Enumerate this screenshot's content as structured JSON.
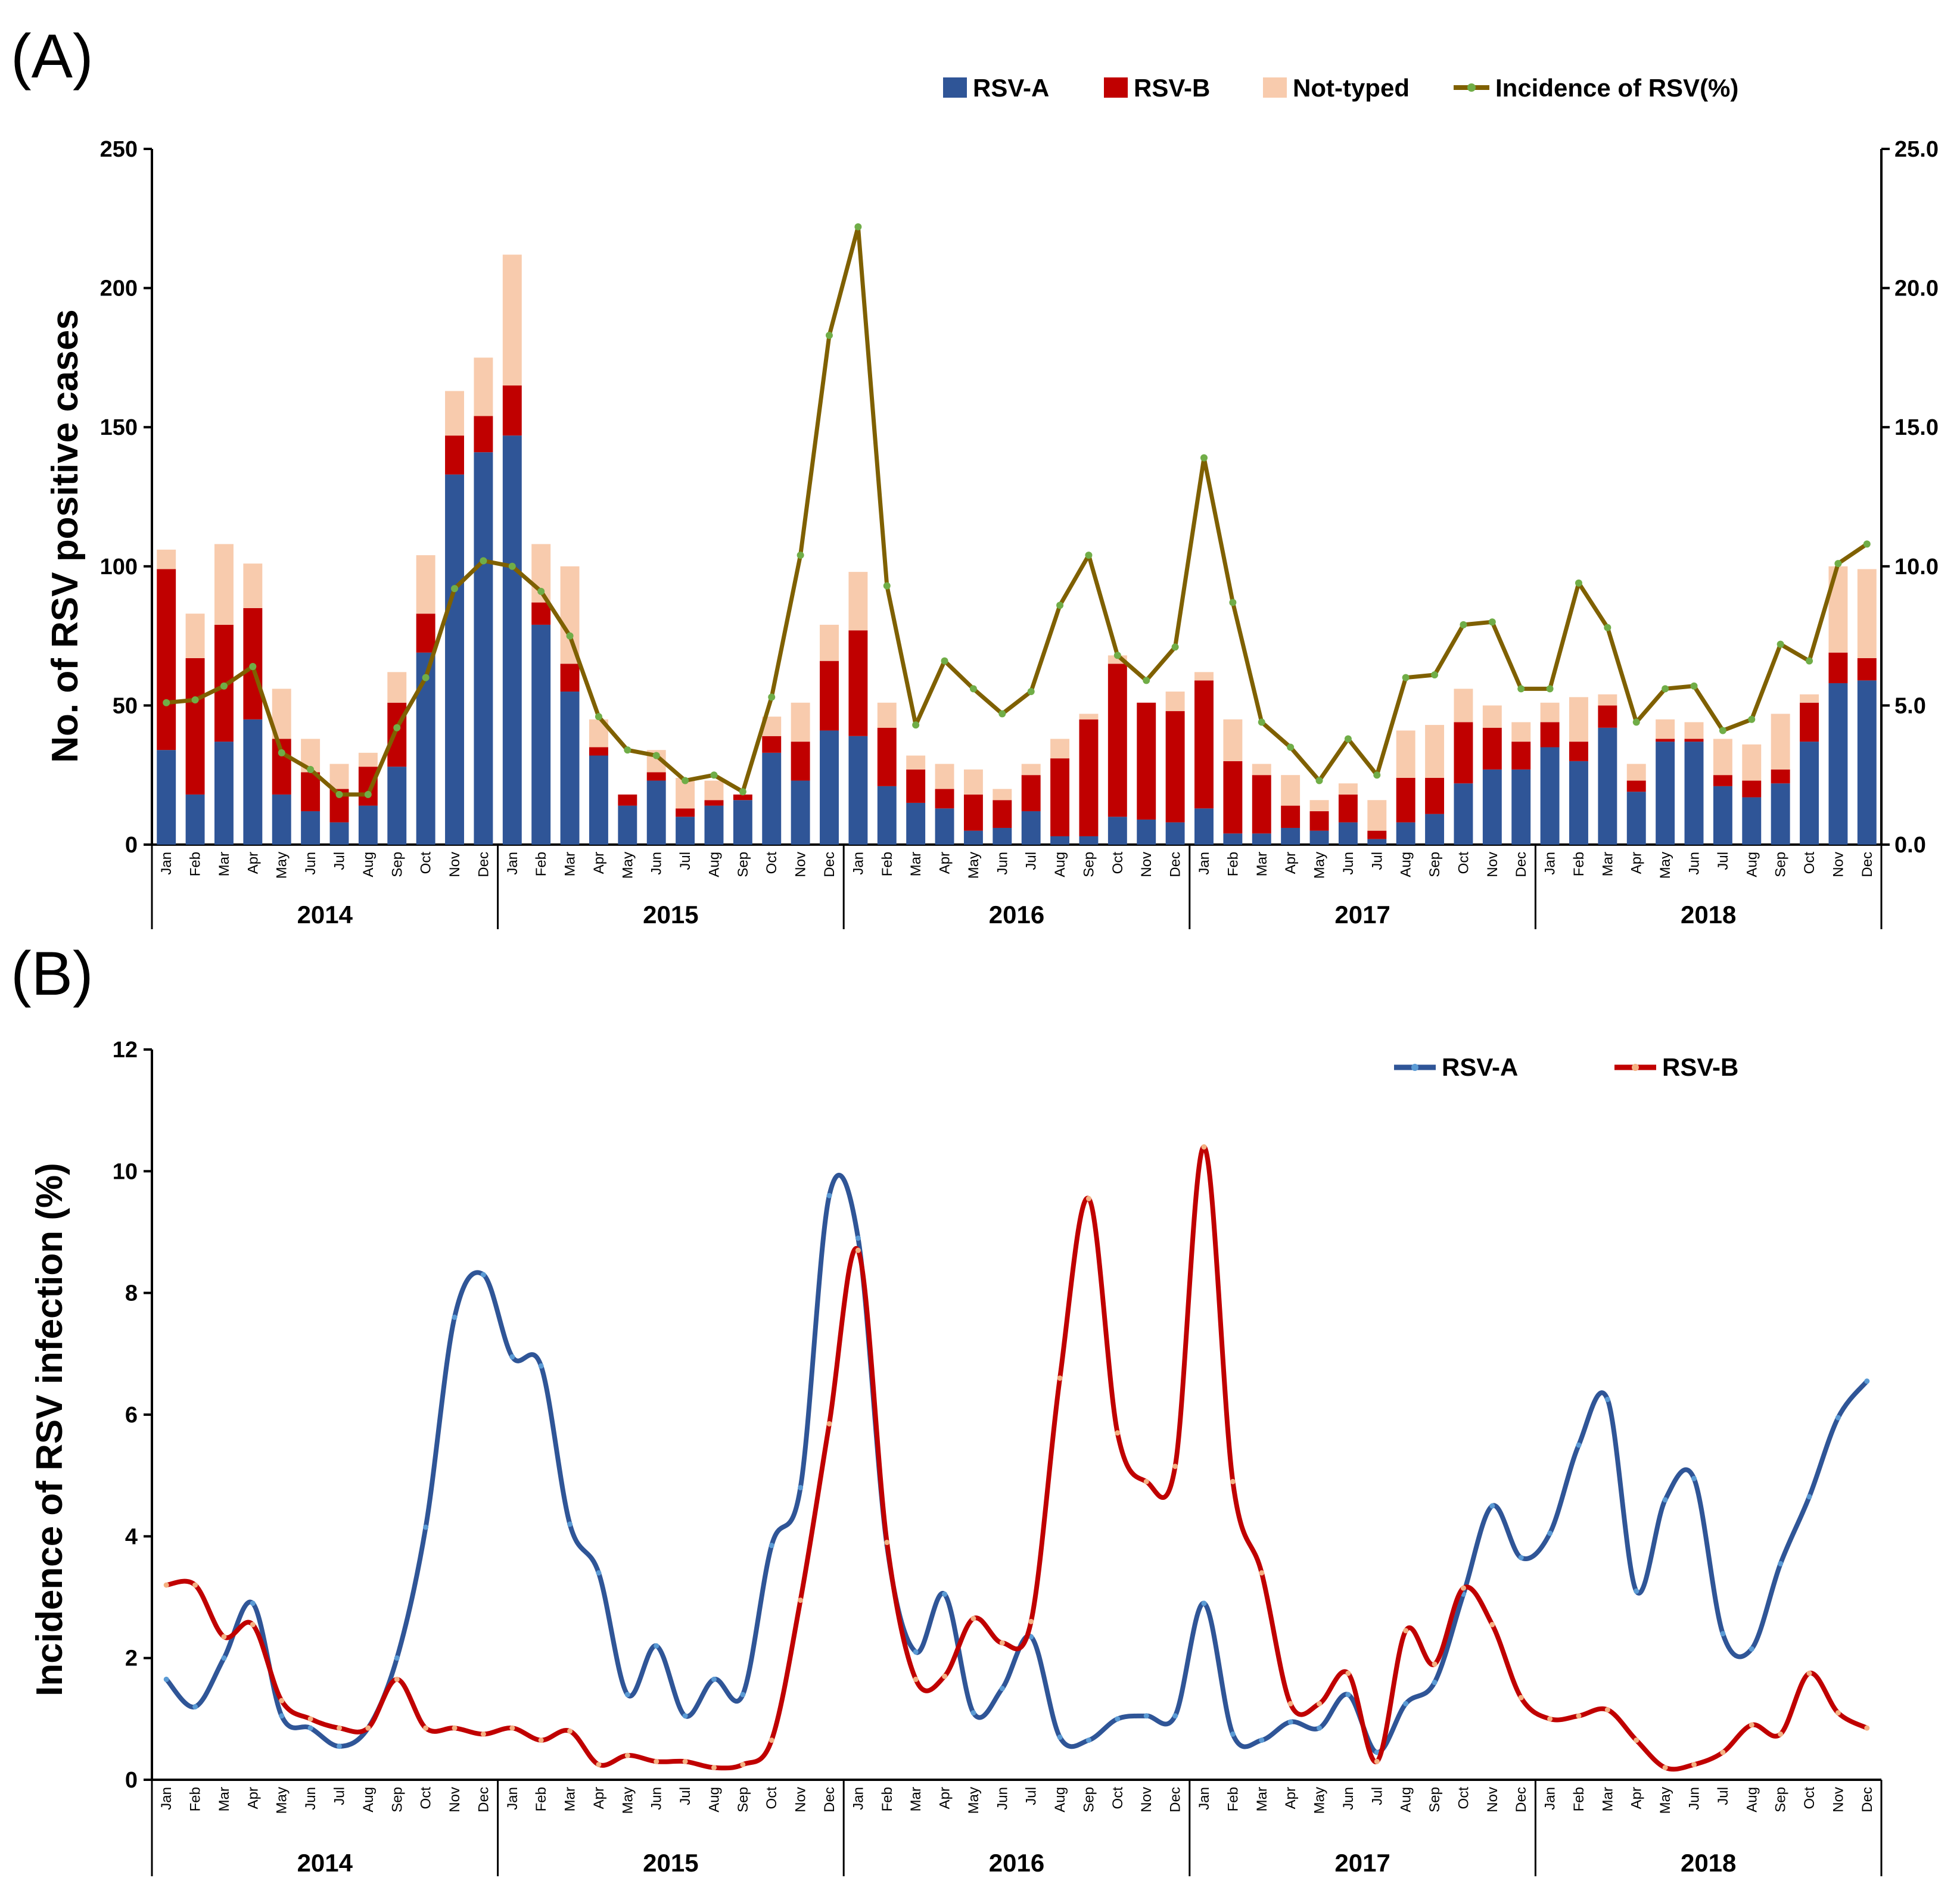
{
  "panels": {
    "a_label": "(A)",
    "b_label": "(B)"
  },
  "colors": {
    "rsv_a": "#2F5597",
    "rsv_b": "#C00000",
    "not_typed": "#F8CBAD",
    "incidence": "#7F6000",
    "incidence_marker": "#70AD47",
    "line_a": "#2F5597",
    "line_b": "#C00000",
    "line_b_marker": "#F4B183"
  },
  "months": [
    "Jan",
    "Feb",
    "Mar",
    "Apr",
    "May",
    "Jun",
    "Jul",
    "Aug",
    "Sep",
    "Oct",
    "Nov",
    "Dec"
  ],
  "years": [
    "2014",
    "2015",
    "2016",
    "2017",
    "2018"
  ],
  "chart_data": [
    {
      "type": "bar",
      "subtype": "stacked bar with line on secondary axis",
      "ylabel": "No. of RSV positive cases",
      "ylim": [
        0,
        250
      ],
      "yticks": [
        "0",
        "50",
        "100",
        "150",
        "200",
        "250"
      ],
      "y2lim": [
        0,
        25
      ],
      "y2ticks": [
        "0.0",
        "5.0",
        "10.0",
        "15.0",
        "20.0",
        "25.0"
      ],
      "legend": [
        "RSV-A",
        "RSV-B",
        "Not-typed",
        "Incidence of RSV(%)"
      ],
      "legend_position": "top-right",
      "series": [
        {
          "name": "RSV-A",
          "values": [
            34,
            18,
            37,
            45,
            18,
            12,
            8,
            14,
            28,
            69,
            133,
            141,
            147,
            79,
            55,
            32,
            14,
            23,
            10,
            14,
            16,
            33,
            23,
            41,
            39,
            21,
            15,
            13,
            5,
            6,
            12,
            3,
            3,
            10,
            9,
            8,
            13,
            4,
            4,
            6,
            5,
            8,
            2,
            8,
            11,
            22,
            27,
            27,
            35,
            30,
            42,
            19,
            37,
            37,
            21,
            17,
            22,
            37,
            58,
            59
          ]
        },
        {
          "name": "RSV-B",
          "values": [
            65,
            49,
            42,
            40,
            20,
            14,
            12,
            14,
            23,
            14,
            14,
            13,
            18,
            8,
            10,
            3,
            4,
            3,
            3,
            2,
            2,
            6,
            14,
            25,
            38,
            21,
            12,
            7,
            13,
            10,
            13,
            28,
            42,
            55,
            42,
            40,
            46,
            26,
            21,
            8,
            7,
            10,
            3,
            16,
            13,
            22,
            15,
            10,
            9,
            7,
            8,
            4,
            1,
            1,
            4,
            6,
            5,
            14,
            11,
            8
          ]
        },
        {
          "name": "Not-typed",
          "values": [
            7,
            16,
            29,
            16,
            18,
            12,
            9,
            5,
            11,
            21,
            16,
            21,
            47,
            21,
            35,
            10,
            0,
            8,
            11,
            7,
            0,
            7,
            14,
            13,
            21,
            9,
            5,
            9,
            9,
            4,
            4,
            7,
            2,
            3,
            0,
            7,
            3,
            15,
            4,
            11,
            4,
            4,
            11,
            17,
            19,
            12,
            8,
            7,
            7,
            16,
            4,
            6,
            7,
            6,
            13,
            13,
            20,
            3,
            31,
            32
          ]
        },
        {
          "name": "Incidence of RSV(%)",
          "axis": "secondary",
          "values": [
            5.1,
            5.2,
            5.7,
            6.4,
            3.3,
            2.7,
            1.8,
            1.8,
            4.2,
            6.0,
            9.2,
            10.2,
            10.0,
            9.1,
            7.5,
            4.6,
            3.4,
            3.2,
            2.3,
            2.5,
            1.9,
            5.3,
            10.4,
            18.3,
            22.2,
            9.3,
            4.3,
            6.6,
            5.6,
            4.7,
            5.5,
            8.6,
            10.4,
            6.8,
            5.9,
            7.1,
            13.9,
            8.7,
            4.4,
            3.5,
            2.3,
            3.8,
            2.5,
            6.0,
            6.1,
            7.9,
            8.0,
            5.6,
            5.6,
            9.4,
            7.8,
            4.4,
            5.6,
            5.7,
            4.1,
            4.5,
            7.2,
            6.6,
            10.1,
            10.8
          ]
        }
      ]
    },
    {
      "type": "line",
      "subtype": "smoothed line",
      "ylabel": "Incidence of RSV infection (%)",
      "ylim": [
        0,
        12
      ],
      "yticks": [
        "0",
        "2",
        "4",
        "6",
        "8",
        "10",
        "12"
      ],
      "legend": [
        "RSV-A",
        "RSV-B"
      ],
      "legend_position": "top-right",
      "series": [
        {
          "name": "RSV-A",
          "values": [
            1.65,
            1.2,
            2.0,
            2.9,
            1.05,
            0.85,
            0.55,
            0.85,
            2.0,
            4.15,
            7.6,
            8.3,
            6.95,
            6.8,
            4.2,
            3.4,
            1.4,
            2.2,
            1.05,
            1.65,
            1.4,
            3.85,
            4.8,
            9.6,
            8.9,
            3.85,
            2.1,
            3.05,
            1.1,
            1.5,
            2.35,
            0.7,
            0.65,
            1.0,
            1.05,
            1.05,
            2.9,
            0.75,
            0.65,
            0.95,
            0.85,
            1.4,
            0.45,
            1.25,
            1.6,
            3.05,
            4.5,
            3.65,
            4.05,
            5.5,
            6.25,
            3.1,
            4.6,
            4.95,
            2.4,
            2.15,
            3.55,
            4.65,
            5.95,
            6.55
          ]
        },
        {
          "name": "RSV-B",
          "values": [
            3.2,
            3.2,
            2.35,
            2.55,
            1.3,
            1.0,
            0.85,
            0.85,
            1.65,
            0.85,
            0.85,
            0.75,
            0.85,
            0.65,
            0.8,
            0.25,
            0.4,
            0.3,
            0.3,
            0.2,
            0.25,
            0.65,
            2.95,
            5.85,
            8.7,
            3.9,
            1.65,
            1.7,
            2.65,
            2.25,
            2.6,
            6.6,
            9.55,
            5.7,
            4.9,
            5.15,
            10.4,
            4.9,
            3.4,
            1.25,
            1.25,
            1.75,
            0.3,
            2.45,
            1.9,
            3.15,
            2.55,
            1.35,
            1.0,
            1.05,
            1.15,
            0.65,
            0.2,
            0.25,
            0.45,
            0.9,
            0.75,
            1.75,
            1.1,
            0.85
          ]
        }
      ]
    }
  ]
}
